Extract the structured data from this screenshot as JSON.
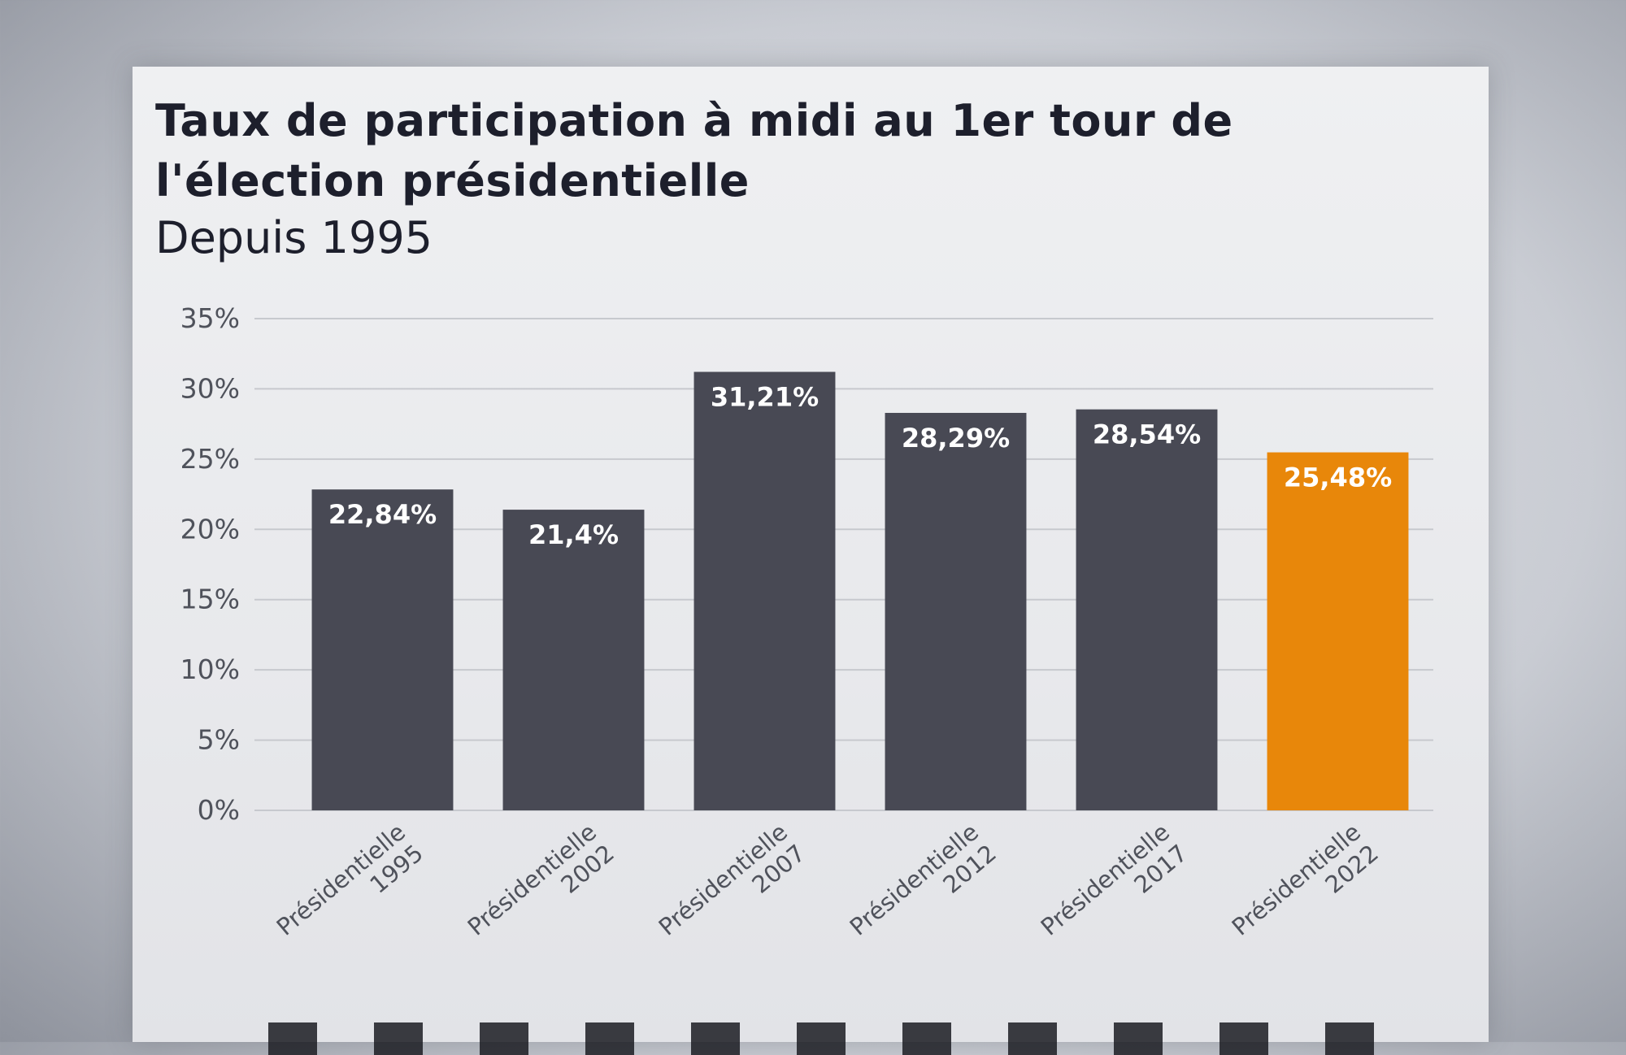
{
  "title": "Taux de participation à midi au 1er tour de l'élection présidentielle",
  "subtitle": "Depuis 1995",
  "colors": {
    "default_bar": "#484954",
    "highlight_bar": "#e8870a",
    "grid": "#c7c9ce"
  },
  "chart_data": {
    "type": "bar",
    "title": "Taux de participation à midi au 1er tour de l'élection présidentielle",
    "subtitle": "Depuis 1995",
    "categories": [
      "Présidentielle 1995",
      "Présidentielle 2002",
      "Présidentielle 2007",
      "Présidentielle 2012",
      "Présidentielle 2017",
      "Présidentielle 2022"
    ],
    "values": [
      22.84,
      21.4,
      31.21,
      28.29,
      28.54,
      25.48
    ],
    "value_labels": [
      "22,84%",
      "21,4%",
      "31,21%",
      "28,29%",
      "28,54%",
      "25,48%"
    ],
    "highlight_index": 5,
    "yticks": [
      0,
      5,
      10,
      15,
      20,
      25,
      30,
      35
    ],
    "ytick_labels": [
      "0%",
      "5%",
      "10%",
      "15%",
      "20%",
      "25%",
      "30%",
      "35%"
    ],
    "ylim": [
      0,
      35
    ],
    "unit": "%",
    "grid": true,
    "legend": "none",
    "xlabel": "",
    "ylabel": ""
  }
}
